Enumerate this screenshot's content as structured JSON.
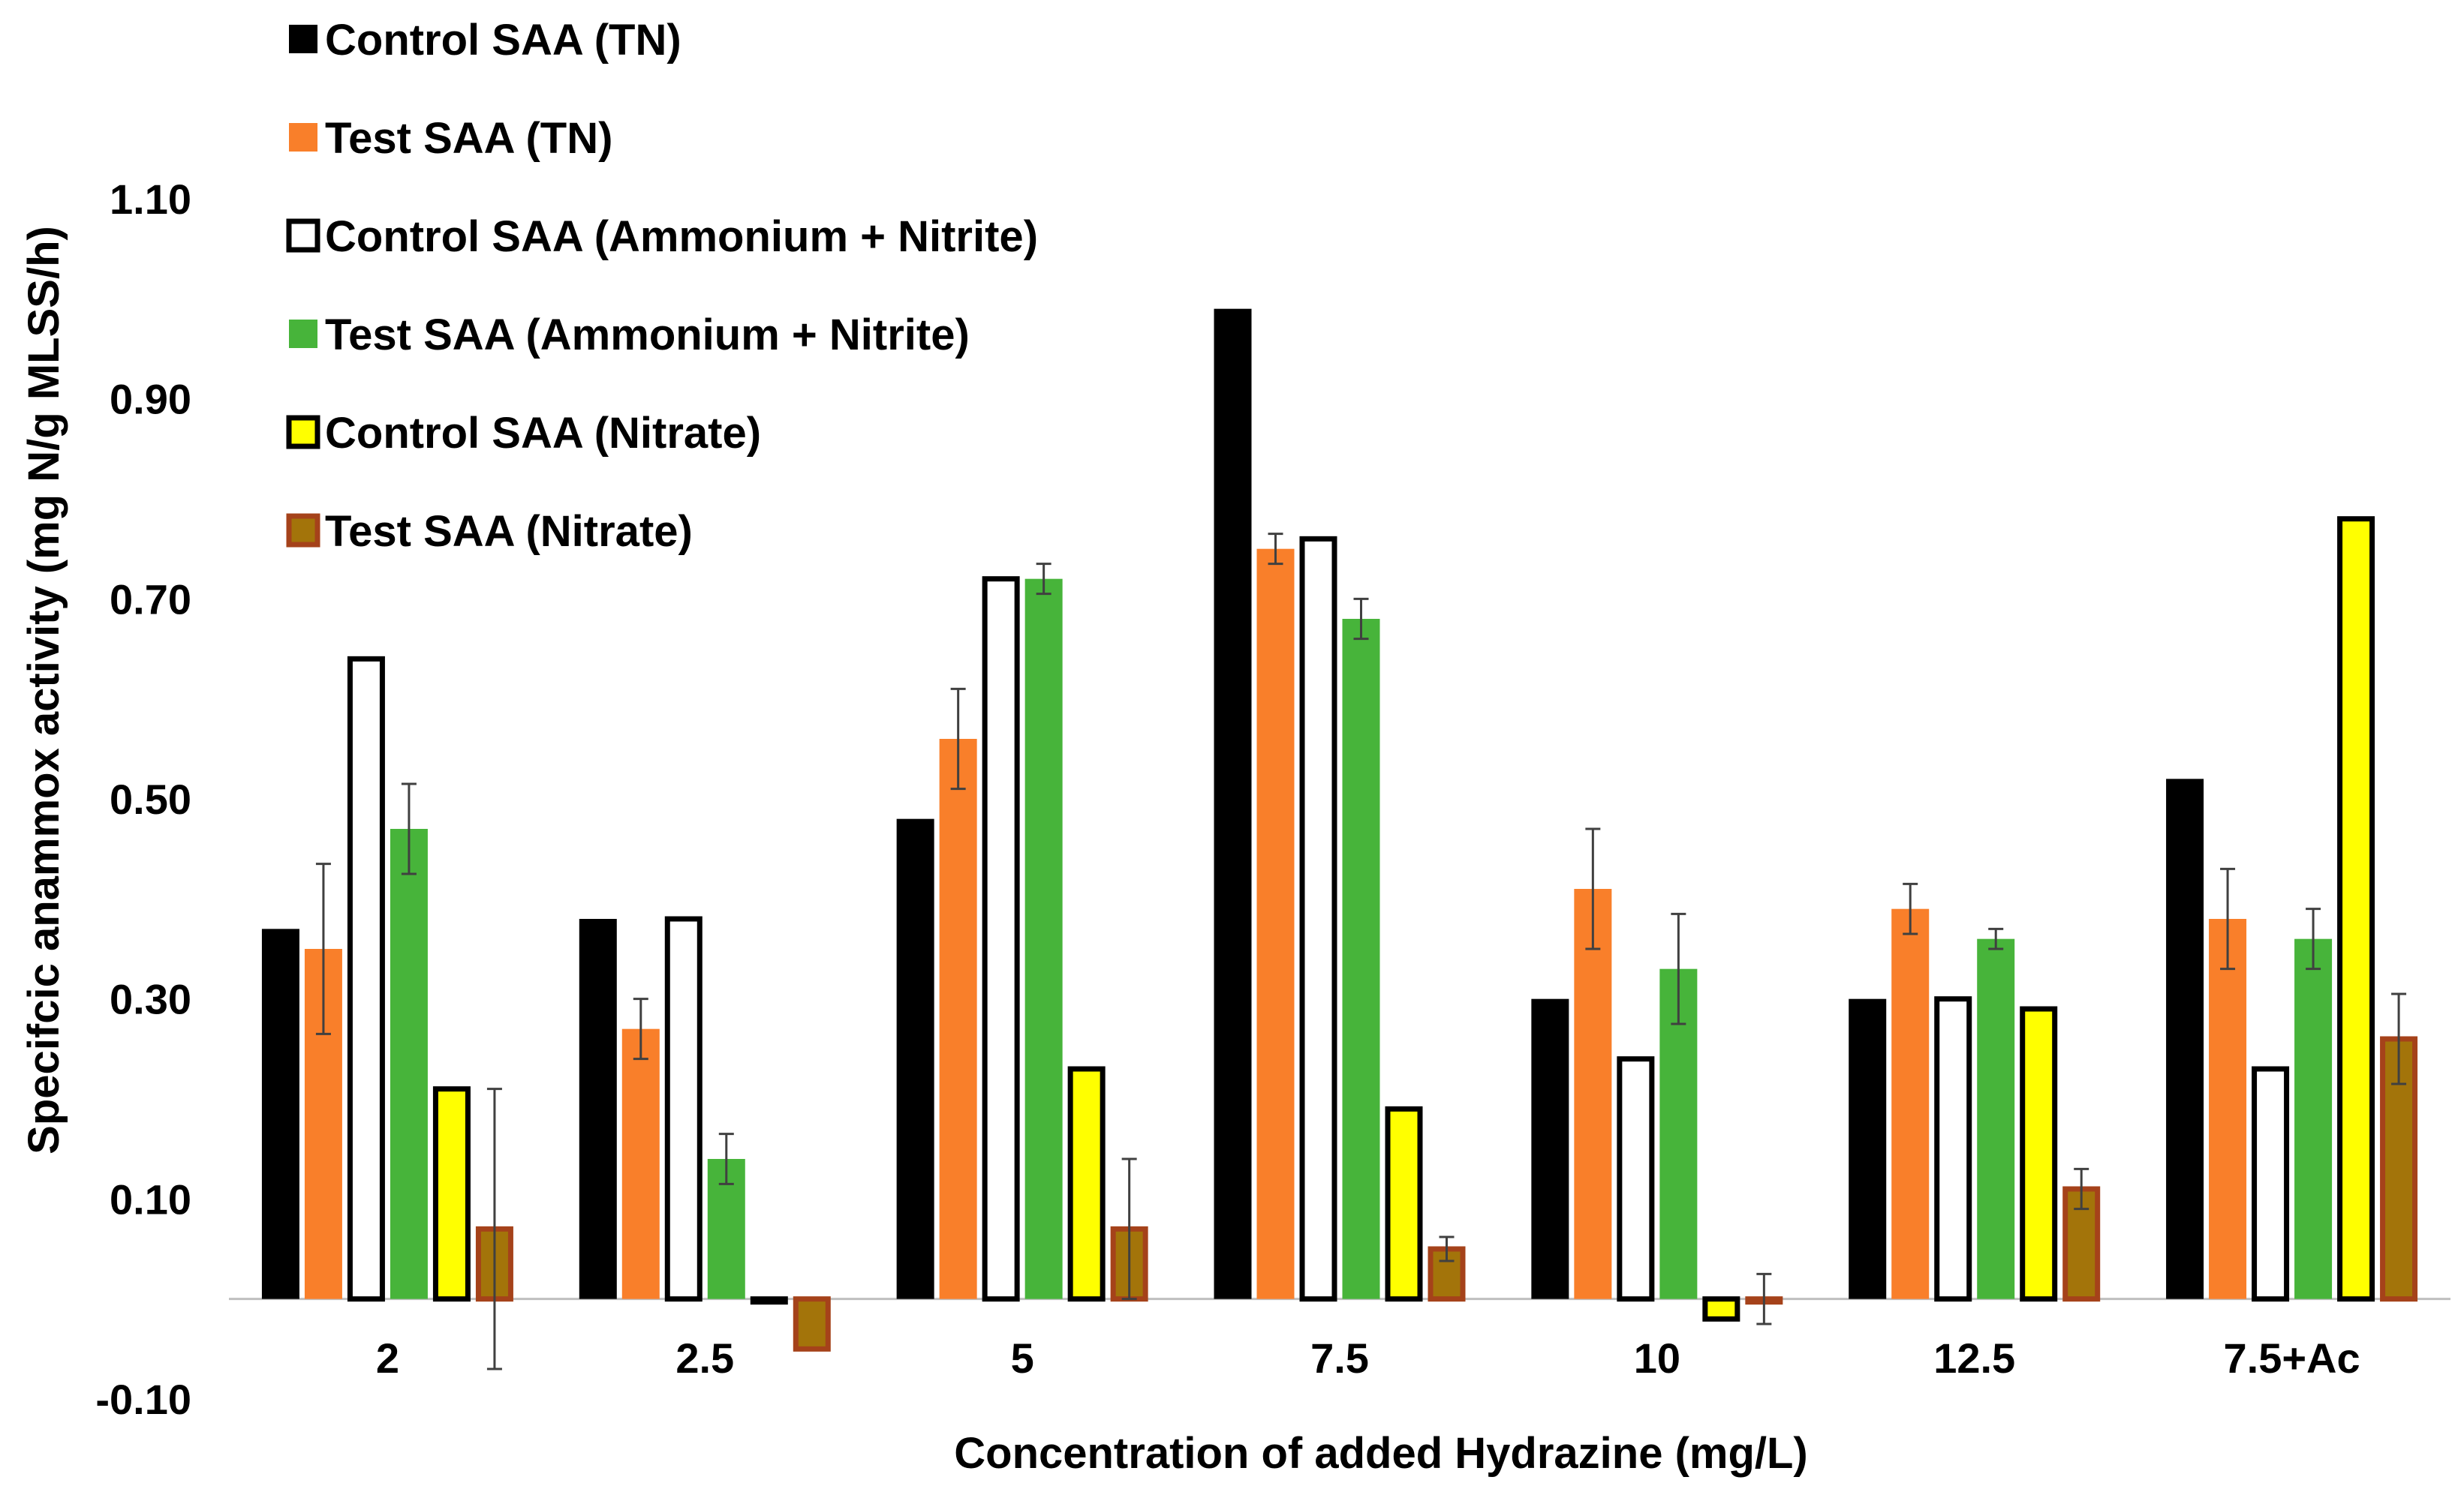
{
  "chart_data": {
    "type": "bar",
    "title": "",
    "xlabel": "Concentration of added Hydrazine (mg/L)",
    "ylabel": "Specifcic anammox activity (mg N/g MLSS/h)",
    "ylim": [
      -0.1,
      1.1
    ],
    "yticks": [
      -0.1,
      0.1,
      0.3,
      0.5,
      0.7,
      0.9,
      1.1
    ],
    "ytick_labels": [
      "-0.10",
      "0.10",
      "0.30",
      "0.50",
      "0.70",
      "0.90",
      "1.10"
    ],
    "grid": false,
    "legend_position": "top-left",
    "categories": [
      "2",
      "2.5",
      "5",
      "7.5",
      "10",
      "12.5",
      "7.5+Ac"
    ],
    "series": [
      {
        "name": "Control SAA (TN)",
        "fill": "#000000",
        "stroke": "#000000",
        "values": [
          0.37,
          0.38,
          0.48,
          0.99,
          0.3,
          0.3,
          0.52
        ],
        "errors": [
          null,
          null,
          null,
          null,
          null,
          null,
          null
        ]
      },
      {
        "name": "Test SAA (TN)",
        "fill": "#f97f2a",
        "stroke": "#f97f2a",
        "values": [
          0.35,
          0.27,
          0.56,
          0.75,
          0.41,
          0.39,
          0.38
        ],
        "errors": [
          0.085,
          0.03,
          0.05,
          0.015,
          0.06,
          0.025,
          0.05
        ]
      },
      {
        "name": "Control SAA (Ammonium + Nitrite)",
        "fill": "#ffffff",
        "stroke": "#000000",
        "values": [
          0.64,
          0.38,
          0.72,
          0.76,
          0.24,
          0.3,
          0.23
        ],
        "errors": [
          null,
          null,
          null,
          null,
          null,
          null,
          null
        ]
      },
      {
        "name": "Test SAA (Ammonium + Nitrite)",
        "fill": "#47b43a",
        "stroke": "#47b43a",
        "values": [
          0.47,
          0.14,
          0.72,
          0.68,
          0.33,
          0.36,
          0.36
        ],
        "errors": [
          0.045,
          0.025,
          0.015,
          0.02,
          0.055,
          0.01,
          0.03
        ]
      },
      {
        "name": "Control SAA (Nitrate)",
        "fill": "#ffff00",
        "stroke": "#000000",
        "values": [
          0.21,
          0.0,
          0.23,
          0.19,
          -0.02,
          0.29,
          0.78
        ],
        "errors": [
          null,
          null,
          null,
          null,
          null,
          null,
          null
        ]
      },
      {
        "name": "Test SAA (Nitrate)",
        "fill": "#a3740a",
        "stroke": "#a5421a",
        "values": [
          0.07,
          -0.05,
          0.07,
          0.05,
          0.0,
          0.11,
          0.26
        ],
        "errors": [
          0.14,
          null,
          0.07,
          0.012,
          0.025,
          0.02,
          0.045
        ]
      }
    ]
  }
}
